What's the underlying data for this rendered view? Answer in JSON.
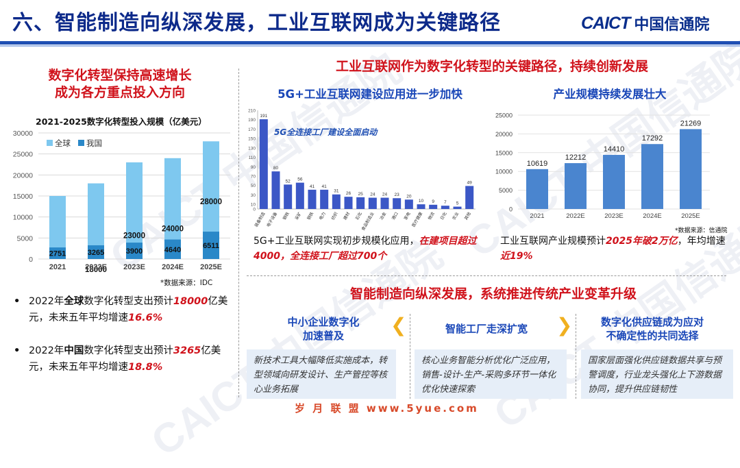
{
  "header": {
    "title": "六、智能制造向纵深发展，工业互联网成为关键路径",
    "logo_en": "CAICT",
    "logo_cn": "中国信通院"
  },
  "left": {
    "heading_line1": "数字化转型保持高速增长",
    "heading_line2": "成为各方重点投入方向",
    "source": "*数据来源：IDC",
    "bullet1_pre": "2022年",
    "bullet1_bold": "全球",
    "bullet1_mid": "数字化转型支出预计",
    "bullet1_em1": "18000",
    "bullet1_mid2": "亿美元，未来五年平均增速",
    "bullet1_em2": "16.6%",
    "bullet2_pre": "2022年",
    "bullet2_bold": "中国",
    "bullet2_mid": "数字化转型支出预计",
    "bullet2_em1": "3265",
    "bullet2_mid2": "亿美元，未来五年平均增速",
    "bullet2_em2": "18.8%"
  },
  "right": {
    "heading": "工业互联网作为数字化转型的关键路径，持续创新发展",
    "sub1": "5G+工业互联网建设应用进一步加快",
    "sub2": "产业规模持续发展壮大",
    "note1": "5G全连接工厂建设全面启动",
    "source2": "*数据来源：信通院",
    "para_mid_pre": "5G+工业互联网实现初步规模化应用，",
    "para_mid_em": "在建项目超过4000，全连接工厂超过700个",
    "para_right_pre": "工业互联网产业规模预计",
    "para_right_em1": "2025年破2万亿",
    "para_right_mid": "，年均增速",
    "para_right_em2": "近19%"
  },
  "bottom": {
    "heading": "智能制造向纵深发展，系统推进传统产业变革升级",
    "col1_title_l1": "中小企业数字化",
    "col1_title_l2": "加速普及",
    "col1_text": "新技术工具大幅降低实施成本，转型领域向研发设计、生产管控等核心业务拓展",
    "col2_title": "智能工厂走深扩宽",
    "col2_text": "核心业务智能分析优化广泛应用，销售-设计-生产-采购多环节一体化优化快速探索",
    "col3_title_l1": "数字化供应链成为应对",
    "col3_title_l2": "不确定性的共同选择",
    "col3_text": "国家层面强化供应链数据共享与预警调度，行业龙头强化上下游数据协同，提升供应链韧性",
    "footer": "岁 月 联 盟  www.5yue.com"
  },
  "watermark": "CAICT 中国信通院",
  "colors": {
    "brand_blue": "#0d2a8a",
    "accent_red": "#d0121b",
    "light_bar": "#7ec8ef",
    "dark_bar": "#2a88c8",
    "bar_blue": "#3b57c6",
    "bar_blue2": "#4a85cf"
  },
  "chart_data": [
    {
      "type": "bar",
      "title": "2021-2025数字化转型投入规模（亿美元）",
      "categories": [
        "2021",
        "2022E",
        "2023E",
        "2024E",
        "2025E"
      ],
      "series": [
        {
          "name": "全球",
          "values": [
            15000,
            18000,
            23000,
            24000,
            28000
          ]
        },
        {
          "name": "我国",
          "values": [
            2751,
            3265,
            3900,
            4640,
            6511
          ]
        }
      ],
      "yticks": [
        0,
        5000,
        10000,
        15000,
        20000,
        25000,
        30000
      ],
      "ylim": [
        0,
        30000
      ],
      "legend": "top-left",
      "grid": true
    },
    {
      "type": "bar",
      "categories": [
        "装备制造",
        "电子设备",
        "钢铁",
        "采矿",
        "钢铁",
        "电力",
        "纺织",
        "建材",
        "石化",
        "食品制造业",
        "冶金",
        "港口",
        "家电",
        "医疗健康",
        "物流",
        "日化",
        "农业",
        "其他"
      ],
      "values": [
        191,
        80,
        52,
        56,
        41,
        41,
        31,
        26,
        25,
        24,
        24,
        23,
        20,
        10,
        9,
        7,
        5,
        49
      ],
      "yticks": [
        0,
        10,
        30,
        50,
        70,
        90,
        110,
        130,
        150,
        170,
        190,
        210
      ],
      "ylim": [
        0,
        210
      ],
      "grid": false
    },
    {
      "type": "bar",
      "categories": [
        "2021",
        "2022E",
        "2023E",
        "2024E",
        "2025E"
      ],
      "values": [
        10619,
        12212,
        14410,
        17292,
        21269
      ],
      "yticks": [
        0,
        5000,
        10000,
        15000,
        20000,
        25000
      ],
      "ylim": [
        0,
        25000
      ],
      "grid": true
    }
  ]
}
